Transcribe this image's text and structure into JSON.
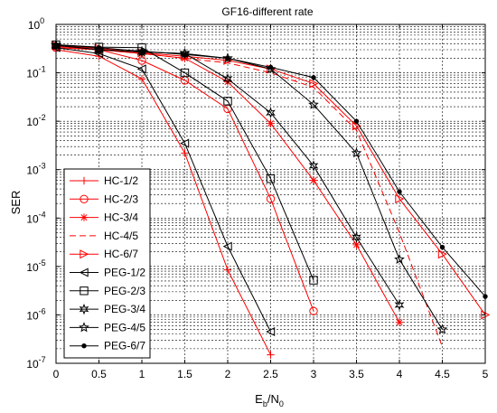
{
  "chart_data": {
    "type": "line",
    "title": "GF16-different rate",
    "xlabel": "E_b/N_0",
    "xlabel_parts": {
      "base1": "E",
      "sub1": "b",
      "sep": "/N",
      "sub2": "0"
    },
    "ylabel": "SER",
    "xlim": [
      0,
      5
    ],
    "ylim": [
      1e-07,
      1
    ],
    "yscale": "log",
    "grid": true,
    "legend_position": "lower-left",
    "x_ticks": [
      "0",
      "0.5",
      "1",
      "1.5",
      "2",
      "2.5",
      "3",
      "3.5",
      "4",
      "4.5",
      "5"
    ],
    "y_ticks": [
      {
        "base": "10",
        "exp": "0"
      },
      {
        "base": "10",
        "exp": "-1"
      },
      {
        "base": "10",
        "exp": "-2"
      },
      {
        "base": "10",
        "exp": "-3"
      },
      {
        "base": "10",
        "exp": "-4"
      },
      {
        "base": "10",
        "exp": "-5"
      },
      {
        "base": "10",
        "exp": "-6"
      },
      {
        "base": "10",
        "exp": "-7"
      }
    ],
    "series": [
      {
        "name": "HC-1/2",
        "color": "#ff0000",
        "marker": "plus",
        "dash": "solid",
        "x": [
          0,
          0.5,
          1,
          1.5,
          2,
          2.5
        ],
        "y": [
          0.3,
          0.22,
          0.075,
          0.0022,
          8.5e-06,
          1.5e-07
        ]
      },
      {
        "name": "HC-2/3",
        "color": "#ff0000",
        "marker": "circle",
        "dash": "solid",
        "x": [
          0,
          0.5,
          1,
          1.5,
          2,
          2.5,
          3
        ],
        "y": [
          0.33,
          0.3,
          0.18,
          0.07,
          0.018,
          0.00025,
          1.2e-06
        ]
      },
      {
        "name": "HC-3/4",
        "color": "#ff0000",
        "marker": "star",
        "dash": "solid",
        "x": [
          0,
          0.5,
          1,
          1.5,
          2,
          2.5,
          3,
          3.5,
          4
        ],
        "y": [
          0.35,
          0.3,
          0.25,
          0.2,
          0.065,
          0.009,
          0.0006,
          2.8e-05,
          7e-07
        ]
      },
      {
        "name": "HC-4/5",
        "color": "#ff0000",
        "marker": "none",
        "dash": "dashed",
        "x": [
          0,
          0.5,
          1,
          1.5,
          2,
          2.5,
          3,
          3.5,
          4,
          4.5
        ],
        "y": [
          0.36,
          0.3,
          0.25,
          0.2,
          0.16,
          0.1,
          0.05,
          0.0065,
          5e-05,
          2.2e-07
        ]
      },
      {
        "name": "HC-6/7",
        "color": "#ff0000",
        "marker": "triangle-right",
        "dash": "solid",
        "x": [
          0,
          0.5,
          1,
          1.5,
          2,
          2.5,
          3,
          3.5,
          4,
          4.5,
          5
        ],
        "y": [
          0.37,
          0.32,
          0.26,
          0.22,
          0.18,
          0.12,
          0.06,
          0.008,
          0.00025,
          1.8e-05,
          1e-06
        ]
      },
      {
        "name": "PEG-1/2",
        "color": "#000000",
        "marker": "triangle-left",
        "dash": "solid",
        "x": [
          0,
          0.5,
          1,
          1.5,
          2,
          2.5
        ],
        "y": [
          0.33,
          0.25,
          0.12,
          0.0035,
          2.6e-05,
          4.5e-07
        ]
      },
      {
        "name": "PEG-2/3",
        "color": "#000000",
        "marker": "square",
        "dash": "solid",
        "x": [
          0,
          0.5,
          1,
          1.5,
          2,
          2.5,
          3
        ],
        "y": [
          0.38,
          0.34,
          0.33,
          0.1,
          0.026,
          0.00065,
          5.2e-06
        ]
      },
      {
        "name": "PEG-3/4",
        "color": "#000000",
        "marker": "hexagram",
        "dash": "solid",
        "x": [
          0,
          0.5,
          1,
          1.5,
          2,
          2.5,
          3,
          3.5,
          4
        ],
        "y": [
          0.37,
          0.3,
          0.27,
          0.25,
          0.075,
          0.015,
          0.0012,
          4e-05,
          1.6e-06
        ]
      },
      {
        "name": "PEG-4/5",
        "color": "#000000",
        "marker": "pentagram",
        "dash": "solid",
        "x": [
          0,
          0.5,
          1,
          1.5,
          2,
          2.5,
          3,
          3.5,
          4,
          4.5
        ],
        "y": [
          0.37,
          0.3,
          0.27,
          0.25,
          0.2,
          0.12,
          0.022,
          0.0022,
          1.4e-05,
          5e-07
        ]
      },
      {
        "name": "PEG-6/7",
        "color": "#000000",
        "marker": "dot",
        "dash": "solid",
        "x": [
          0,
          0.5,
          1,
          1.5,
          2,
          2.5,
          3,
          3.5,
          4,
          4.5,
          5
        ],
        "y": [
          0.38,
          0.33,
          0.28,
          0.24,
          0.2,
          0.13,
          0.08,
          0.01,
          0.00035,
          2.5e-05,
          2.4e-06
        ]
      }
    ]
  }
}
